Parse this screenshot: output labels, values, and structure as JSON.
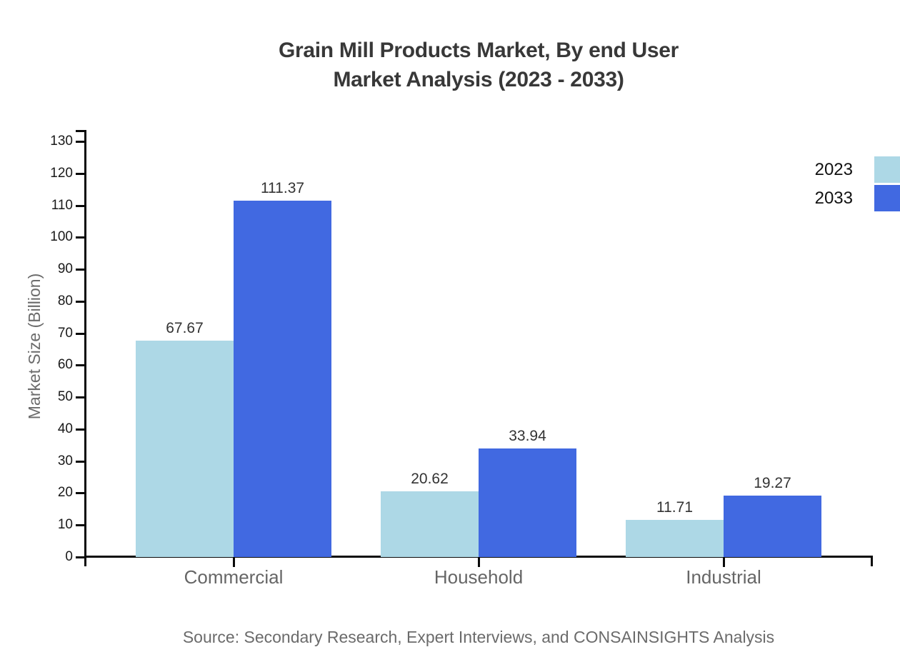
{
  "title": {
    "line1": "Grain Mill Products Market, By end User",
    "line2": "Market Analysis (2023 - 2033)"
  },
  "source": "Source: Secondary Research, Expert Interviews, and CONSAINSIGHTS Analysis",
  "legend": [
    {
      "label": "2023",
      "color": "#ADD8E6"
    },
    {
      "label": "2033",
      "color": "#4169E1"
    }
  ],
  "chart_data": {
    "type": "bar",
    "categories": [
      "Commercial",
      "Household",
      "Industrial"
    ],
    "series": [
      {
        "name": "2023",
        "color": "#ADD8E6",
        "values": [
          67.67,
          20.62,
          11.71
        ]
      },
      {
        "name": "2033",
        "color": "#4169E1",
        "values": [
          111.37,
          33.94,
          19.27
        ]
      }
    ],
    "title": "Grain Mill Products Market, By end User Market Analysis (2023 - 2033)",
    "xlabel": "",
    "ylabel": "Market Size (Billion)",
    "ylim": [
      0,
      130
    ],
    "ytick_step": 10,
    "grid": false,
    "legend_position": "right",
    "value_labels": true,
    "value_label_format": "2-decimals"
  }
}
